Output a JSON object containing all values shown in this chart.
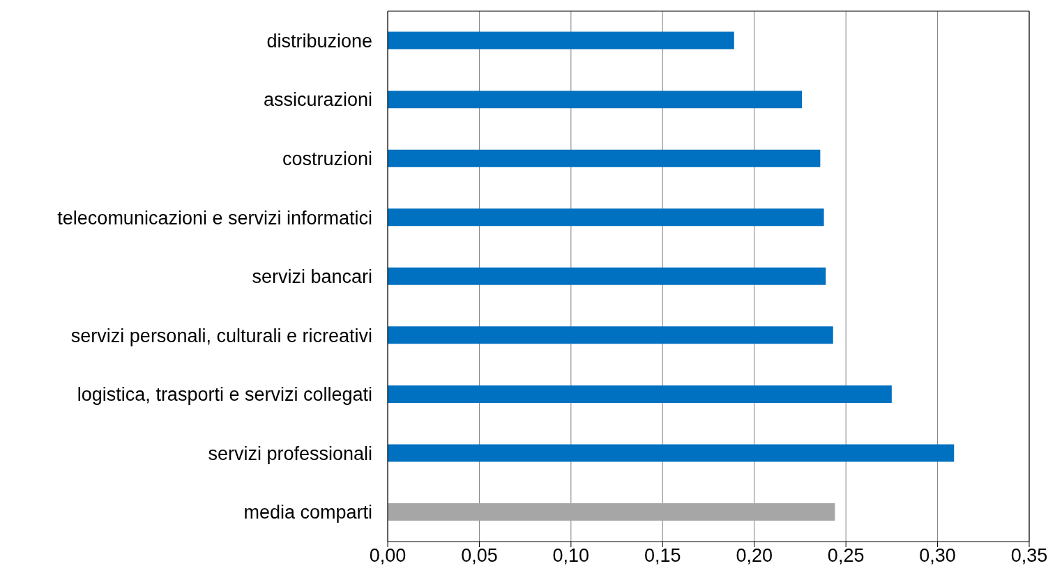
{
  "chart_data": {
    "type": "bar",
    "orientation": "horizontal",
    "categories": [
      "distribuzione",
      "assicurazioni",
      "costruzioni",
      "telecomunicazioni e servizi informatici",
      "servizi bancari",
      "servizi personali, culturali e ricreativi",
      "logistica, trasporti e servizi collegati",
      "servizi professionali",
      "media comparti"
    ],
    "values": [
      0.189,
      0.226,
      0.236,
      0.238,
      0.239,
      0.243,
      0.275,
      0.309,
      0.244
    ],
    "colors": [
      "#0070c0",
      "#0070c0",
      "#0070c0",
      "#0070c0",
      "#0070c0",
      "#0070c0",
      "#0070c0",
      "#0070c0",
      "#a6a6a6"
    ],
    "xlim": [
      0,
      0.35
    ],
    "xticks": [
      {
        "value": 0,
        "label": "0,00"
      },
      {
        "value": 0.05,
        "label": "0,05"
      },
      {
        "value": 0.1,
        "label": "0,10"
      },
      {
        "value": 0.15,
        "label": "0,15"
      },
      {
        "value": 0.2,
        "label": "0,20"
      },
      {
        "value": 0.25,
        "label": "0,25"
      },
      {
        "value": 0.3,
        "label": "0,30"
      },
      {
        "value": 0.35,
        "label": "0,35"
      }
    ],
    "grid": "x"
  }
}
